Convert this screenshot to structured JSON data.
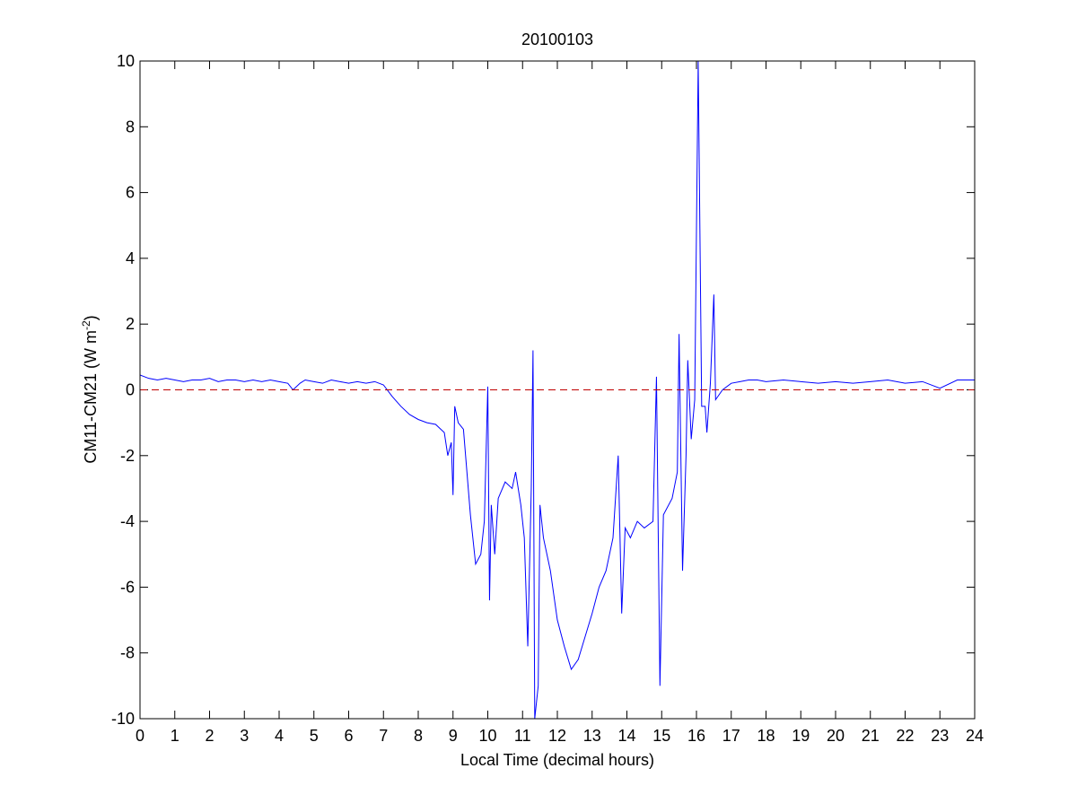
{
  "chart_data": {
    "type": "line",
    "title": "20100103",
    "x_label": "Local Time (decimal hours)",
    "y_label": {
      "text": "CM11-CM21 (W m",
      "superscript": "-2",
      "suffix": ")"
    },
    "x": [
      0,
      0.25,
      0.5,
      0.75,
      1,
      1.25,
      1.5,
      1.75,
      2,
      2.25,
      2.5,
      2.75,
      3,
      3.25,
      3.5,
      3.75,
      4,
      4.25,
      4.4,
      4.6,
      4.75,
      5,
      5.25,
      5.5,
      5.75,
      6,
      6.25,
      6.5,
      6.75,
      7,
      7.25,
      7.5,
      7.75,
      8,
      8.25,
      8.5,
      8.75,
      8.85,
      8.95,
      9,
      9.05,
      9.15,
      9.3,
      9.5,
      9.65,
      9.8,
      9.9,
      10,
      10.05,
      10.1,
      10.2,
      10.3,
      10.5,
      10.7,
      10.8,
      10.95,
      11.05,
      11.15,
      11.25,
      11.3,
      11.35,
      11.45,
      11.5,
      11.6,
      11.8,
      12,
      12.2,
      12.4,
      12.6,
      12.8,
      13,
      13.2,
      13.4,
      13.6,
      13.75,
      13.85,
      13.95,
      14.1,
      14.3,
      14.5,
      14.75,
      14.85,
      14.95,
      15.05,
      15.3,
      15.45,
      15.5,
      15.6,
      15.7,
      15.75,
      15.85,
      15.95,
      16.05,
      16.15,
      16.25,
      16.3,
      16.4,
      16.5,
      16.55,
      16.75,
      17,
      17.25,
      17.5,
      17.75,
      18,
      18.5,
      19,
      19.5,
      20,
      20.5,
      21,
      21.5,
      22,
      22.5,
      23,
      23.5,
      24
    ],
    "series": [
      {
        "color": "#0000ff",
        "values": [
          0.45,
          0.35,
          0.3,
          0.35,
          0.3,
          0.25,
          0.3,
          0.3,
          0.35,
          0.25,
          0.3,
          0.3,
          0.25,
          0.3,
          0.25,
          0.3,
          0.25,
          0.2,
          0.0,
          0.2,
          0.3,
          0.25,
          0.2,
          0.3,
          0.25,
          0.2,
          0.25,
          0.2,
          0.25,
          0.15,
          -0.2,
          -0.5,
          -0.75,
          -0.9,
          -1.0,
          -1.05,
          -1.3,
          -2.0,
          -1.6,
          -3.2,
          -0.5,
          -1.0,
          -1.2,
          -3.8,
          -5.3,
          -5.0,
          -4.0,
          0.1,
          -6.4,
          -3.5,
          -5.0,
          -3.3,
          -2.8,
          -3.0,
          -2.5,
          -3.5,
          -4.5,
          -7.8,
          -3.0,
          1.2,
          -10,
          -9.0,
          -3.5,
          -4.5,
          -5.5,
          -7.0,
          -7.8,
          -8.5,
          -8.2,
          -7.5,
          -6.8,
          -6.0,
          -5.5,
          -4.5,
          -2.0,
          -6.8,
          -4.2,
          -4.5,
          -4.0,
          -4.2,
          -4.0,
          0.4,
          -9.0,
          -3.8,
          -3.3,
          -2.5,
          1.7,
          -5.5,
          -2.0,
          0.9,
          -1.5,
          -0.3,
          10,
          -0.5,
          -0.5,
          -1.3,
          0.2,
          2.9,
          -0.3,
          0.0,
          0.2,
          0.25,
          0.3,
          0.3,
          0.25,
          0.3,
          0.25,
          0.2,
          0.25,
          0.2,
          0.25,
          0.3,
          0.2,
          0.25,
          0.05,
          0.3,
          0.3
        ]
      }
    ],
    "reference_line": {
      "value": 0,
      "color": "#c00000",
      "style": "dashed"
    },
    "xlim": [
      0,
      24
    ],
    "xticks": [
      0,
      1,
      2,
      3,
      4,
      5,
      6,
      7,
      8,
      9,
      10,
      11,
      12,
      13,
      14,
      15,
      16,
      17,
      18,
      19,
      20,
      21,
      22,
      23,
      24
    ],
    "ylim": [
      -10,
      10
    ],
    "yticks": [
      -10,
      -8,
      -6,
      -4,
      -2,
      0,
      2,
      4,
      6,
      8,
      10
    ],
    "grid": false
  }
}
